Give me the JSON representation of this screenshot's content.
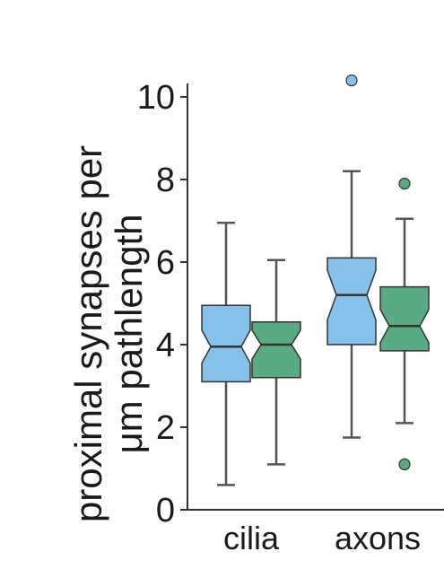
{
  "chart_data": {
    "type": "boxplot",
    "ylabel_lines": [
      "proximal synapses per",
      "μm pathlength"
    ],
    "ylim": [
      0,
      10.4
    ],
    "yticks": [
      0,
      2,
      4,
      6,
      8,
      10
    ],
    "categories": [
      "cilia",
      "axons"
    ],
    "grid": false,
    "colors": [
      "#85c1ea",
      "#58ab82"
    ],
    "boxes": [
      {
        "category": "cilia",
        "color": "#85c1ea",
        "whisker_low": 0.6,
        "q1": 3.1,
        "median": 3.95,
        "q3": 4.95,
        "whisker_high": 6.95,
        "notch_low": 3.55,
        "notch_high": 4.35,
        "outliers": []
      },
      {
        "category": "cilia",
        "color": "#58ab82",
        "whisker_low": 1.1,
        "q1": 3.2,
        "median": 4.0,
        "q3": 4.55,
        "whisker_high": 6.05,
        "notch_low": 3.65,
        "notch_high": 4.35,
        "outliers": []
      },
      {
        "category": "axons",
        "color": "#85c1ea",
        "whisker_low": 1.75,
        "q1": 4.0,
        "median": 5.2,
        "q3": 6.1,
        "whisker_high": 8.2,
        "notch_low": 4.6,
        "notch_high": 5.8,
        "outliers": [
          10.4
        ]
      },
      {
        "category": "axons",
        "color": "#58ab82",
        "whisker_low": 2.1,
        "q1": 3.85,
        "median": 4.45,
        "q3": 5.4,
        "whisker_high": 7.05,
        "notch_low": 4.05,
        "notch_high": 4.85,
        "outliers": [
          7.9,
          1.1
        ]
      }
    ]
  }
}
